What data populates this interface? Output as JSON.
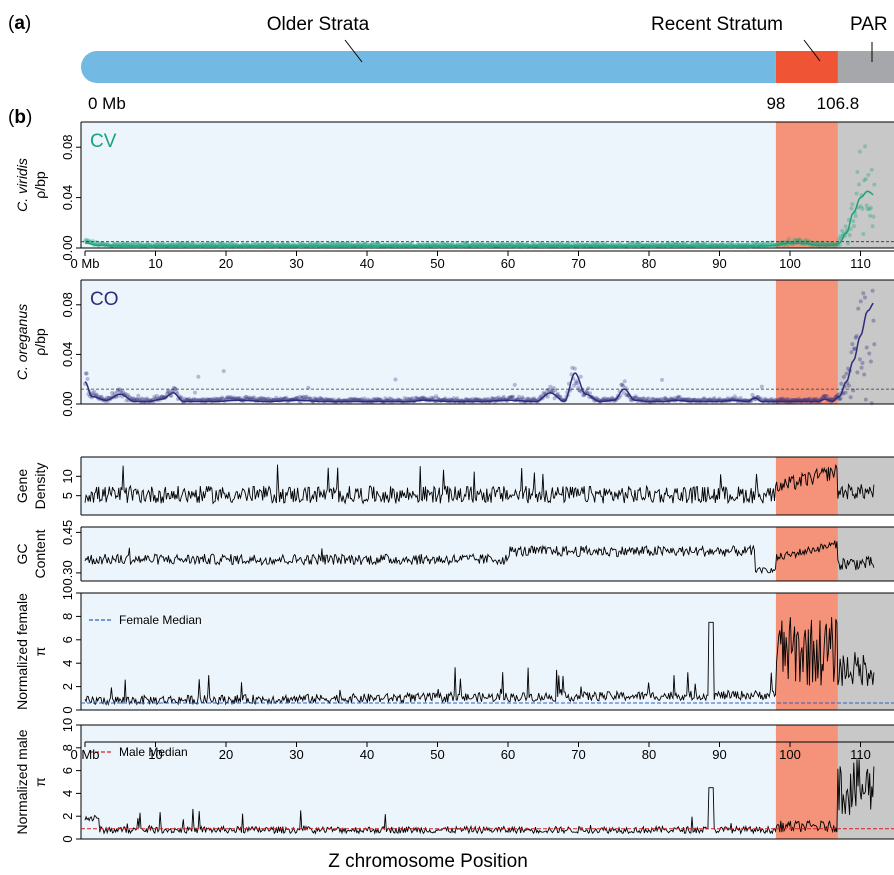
{
  "panel_a": {
    "label_open": "(",
    "label_letter": "a",
    "label_close": ")",
    "older_label": "Older Strata",
    "recent_label": "Recent Stratum",
    "par_label": "PAR",
    "start_label": "0 Mb",
    "mark1_label": "98",
    "mark2_label": "106.8",
    "max_mb": 112,
    "recent_start": 98,
    "par_start": 106.8
  },
  "panel_b": {
    "label_open": "(",
    "label_letter": "b",
    "label_close": ")"
  },
  "colors": {
    "older": "#72b9e3",
    "recent": "#ef5535",
    "par": "#a6a7aa",
    "bg_older": "#edf5fc",
    "bg_recent": "#f4937a",
    "bg_par": "#c8c8c8",
    "cv": "#1aa37a",
    "co": "#2d2c7c",
    "line": "#000000",
    "female_median": "#3060c0",
    "male_median": "#d82020"
  },
  "x_axis": {
    "title": "Z chromosome Position",
    "tick_values": [
      0,
      10,
      20,
      30,
      40,
      50,
      60,
      70,
      80,
      90,
      100,
      110
    ],
    "tick_labels": [
      "0 Mb",
      "10",
      "20",
      "30",
      "40",
      "50",
      "60",
      "70",
      "80",
      "90",
      "100",
      "110"
    ],
    "xlim": [
      0,
      112
    ]
  },
  "chart_data": [
    {
      "type": "scatter",
      "ylabel_species": "C. viridis",
      "ylabel_unit": "ρ/bp",
      "legend_tag": "CV",
      "ylim": [
        0,
        0.1
      ],
      "yticks": [
        0,
        0.04,
        0.08
      ],
      "ytick_labels": [
        "0.00",
        "0.04",
        "0.08"
      ],
      "reference_line": 0.005,
      "smooth": {
        "x": [
          0,
          2,
          5,
          10,
          20,
          30,
          40,
          50,
          60,
          70,
          80,
          90,
          96,
          98,
          100,
          102,
          104,
          106,
          107,
          108,
          109,
          110,
          111,
          112
        ],
        "y": [
          0.004,
          0.002,
          0.0015,
          0.0015,
          0.0015,
          0.0015,
          0.0015,
          0.0015,
          0.0015,
          0.0015,
          0.0015,
          0.0015,
          0.0015,
          0.002,
          0.004,
          0.0035,
          0.002,
          0.002,
          0.004,
          0.012,
          0.028,
          0.04,
          0.045,
          0.042
        ]
      }
    },
    {
      "type": "scatter",
      "ylabel_species": "C. oreganus",
      "ylabel_unit": "ρ/bp",
      "legend_tag": "CO",
      "ylim": [
        0,
        0.1
      ],
      "yticks": [
        0,
        0.04,
        0.08
      ],
      "ytick_labels": [
        "0.00",
        "0.04",
        "0.08"
      ],
      "reference_line": 0.012,
      "smooth": {
        "x": [
          0,
          1,
          3,
          5,
          7,
          9,
          11,
          12.5,
          14,
          18,
          22,
          26,
          30,
          34,
          38,
          42,
          46,
          48,
          52,
          56,
          60,
          64,
          66,
          68,
          69.5,
          71,
          73,
          75,
          76.5,
          78,
          80,
          82,
          84,
          86,
          88,
          90,
          92,
          94,
          95,
          96,
          98,
          100,
          102,
          104,
          105,
          106,
          107,
          108,
          109,
          110,
          111,
          112
        ],
        "y": [
          0.018,
          0.006,
          0.003,
          0.008,
          0.002,
          0.002,
          0.004,
          0.009,
          0.002,
          0.002,
          0.003,
          0.002,
          0.003,
          0.002,
          0.002,
          0.002,
          0.002,
          0.003,
          0.002,
          0.002,
          0.003,
          0.002,
          0.009,
          0.002,
          0.025,
          0.008,
          0.002,
          0.003,
          0.012,
          0.003,
          0.002,
          0.002,
          0.003,
          0.002,
          0.002,
          0.002,
          0.003,
          0.002,
          0.005,
          0.002,
          0.002,
          0.002,
          0.002,
          0.002,
          0.004,
          0.002,
          0.006,
          0.018,
          0.035,
          0.055,
          0.075,
          0.082
        ]
      }
    },
    {
      "type": "line",
      "ylabel_line1": "Gene",
      "ylabel_line2": "Density",
      "ylim": [
        0,
        15
      ],
      "yticks": [
        5,
        10
      ],
      "ytick_labels": [
        "5",
        "10"
      ]
    },
    {
      "type": "line",
      "ylabel_line1": "GC",
      "ylabel_line2": "Content",
      "ylim": [
        0.27,
        0.47
      ],
      "yticks": [
        0.3,
        0.45
      ],
      "ytick_labels": [
        "0.30",
        "0.45"
      ]
    },
    {
      "type": "line",
      "ylabel_line1": "Normalized female",
      "ylabel_line2": "π",
      "ylim": [
        0,
        10
      ],
      "yticks": [
        0,
        2,
        4,
        6,
        8,
        10
      ],
      "ytick_labels": [
        "0",
        "2",
        "4",
        "6",
        "8",
        "10"
      ],
      "median_label": "Female Median",
      "median_value": 0.6
    },
    {
      "type": "line",
      "ylabel_line1": "Normalized male",
      "ylabel_line2": "π",
      "ylim": [
        0,
        10
      ],
      "yticks": [
        0,
        2,
        4,
        6,
        8,
        10
      ],
      "ytick_labels": [
        "0",
        "2",
        "4",
        "6",
        "8",
        "10"
      ],
      "median_label": "Male Median",
      "median_value": 0.9
    }
  ]
}
